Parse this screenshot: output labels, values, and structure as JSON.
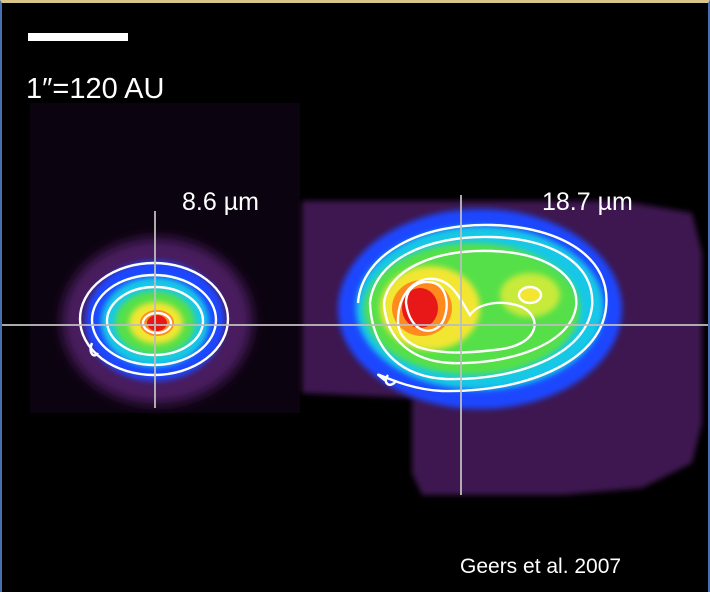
{
  "figure": {
    "scale_label": "1″=120 AU",
    "wavelength_left": "8.6 µm",
    "wavelength_right": "18.7 µm",
    "credit": "Geers et al. 2007"
  },
  "colors": {
    "background": "#000000",
    "faint": "#4a1a5e",
    "blue": "#1e46ff",
    "cyan": "#12c8e6",
    "green": "#55e04a",
    "yellow": "#f2e632",
    "orange": "#ff8a1e",
    "red": "#e81818",
    "contour": "#ffffff",
    "crosshair": "#bdbdbd"
  }
}
